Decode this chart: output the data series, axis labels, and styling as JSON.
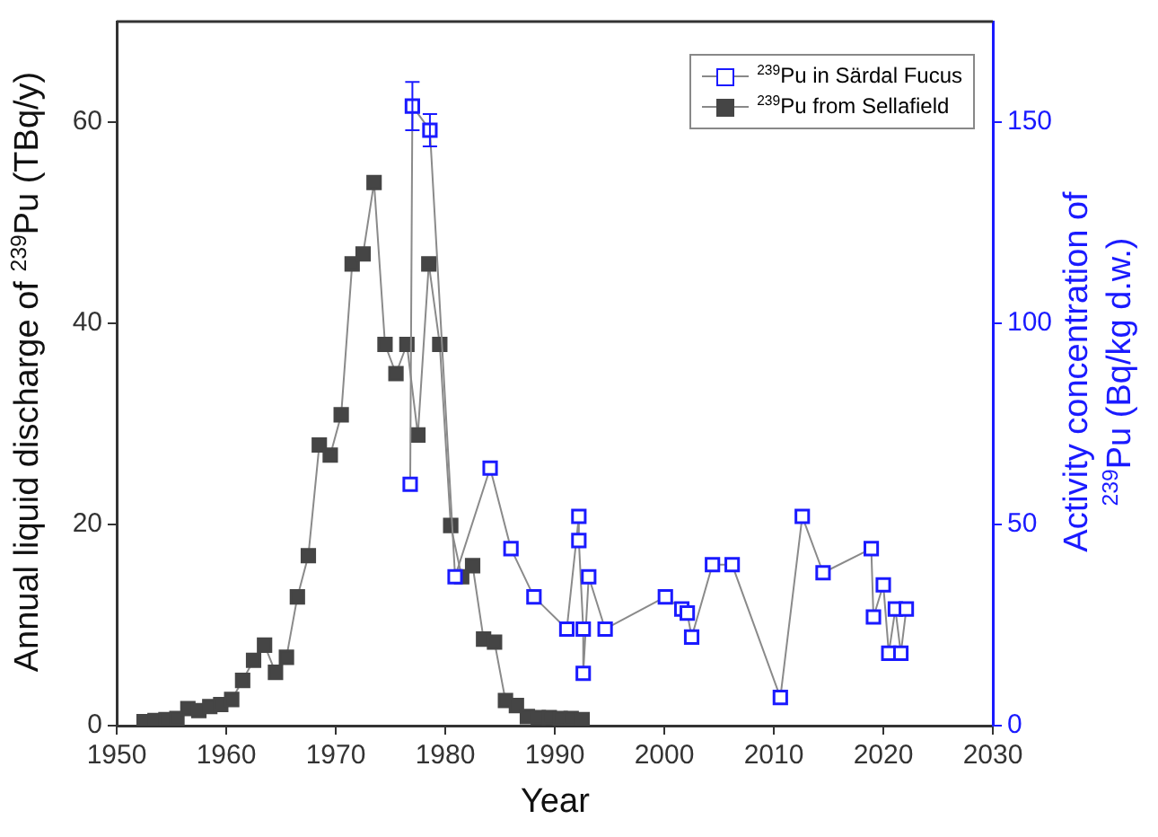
{
  "chart_data": {
    "type": "line",
    "xlabel": "Year",
    "ylabel": "Annual liquid discharge of $^{239}$Pu (TBq/y)",
    "y2label": "Activity concentration of $^{239}$Pu (Bq/kg d.w.)",
    "xlim": [
      1950,
      2030
    ],
    "xticks": [
      1950,
      1960,
      1970,
      1980,
      1990,
      2000,
      2010,
      2020,
      2030
    ],
    "ylim": [
      0,
      70
    ],
    "yticks": [
      0,
      20,
      40,
      60
    ],
    "y2lim": [
      0,
      175
    ],
    "y2ticks": [
      0,
      50,
      100,
      150
    ],
    "grid": false,
    "legend": "top right",
    "marker": "square",
    "line_style": "solid",
    "series": [
      {
        "name": "$^{239}$Pu in Särdal Fucus",
        "color": "#1a1aff",
        "axis": "y2",
        "x": [
          1976.8,
          1977.0,
          1978.6,
          1980.9,
          1984.1,
          1986.0,
          1988.1,
          1991.1,
          1992.2,
          1992.2,
          1992.6,
          1992.6,
          1993.1,
          1994.6,
          2000.1,
          2001.6,
          2002.1,
          2002.5,
          2004.4,
          2006.2,
          2010.6,
          2012.6,
          2014.5,
          2018.9,
          2019.1,
          2020.0,
          2020.5,
          2021.1,
          2021.6,
          2022.1
        ],
        "values": [
          60,
          154,
          148,
          37,
          64,
          44,
          32,
          24,
          52,
          46,
          24,
          13,
          37,
          24,
          32,
          29,
          28,
          22,
          40,
          40,
          7,
          52,
          38,
          44,
          27,
          35,
          18,
          29,
          18,
          29
        ],
        "errors": [
          null,
          6,
          4,
          null,
          null,
          null,
          null,
          null,
          null,
          null,
          null,
          null,
          null,
          null,
          null,
          null,
          null,
          null,
          null,
          null,
          null,
          null,
          null,
          null,
          null,
          null,
          null,
          null,
          null,
          null
        ]
      },
      {
        "name": "$^{239}$Pu from Sellafield",
        "color": "#454545",
        "axis": "y",
        "x": [
          1952.5,
          1953.5,
          1954.5,
          1955.5,
          1956.5,
          1957.5,
          1958.5,
          1959.5,
          1960.5,
          1961.5,
          1962.5,
          1963.5,
          1964.5,
          1965.5,
          1966.5,
          1967.5,
          1968.5,
          1969.5,
          1970.5,
          1971.5,
          1972.5,
          1973.5,
          1974.5,
          1975.5,
          1976.5,
          1977.5,
          1978.5,
          1979.5,
          1980.5,
          1981.5,
          1982.5,
          1983.5,
          1984.5,
          1985.5,
          1986.5,
          1987.5,
          1988.5,
          1989.5,
          1990.5,
          1991.5,
          1992.5
        ],
        "values": [
          0.4,
          0.5,
          0.6,
          0.7,
          1.7,
          1.5,
          1.9,
          2.1,
          2.6,
          4.5,
          6.5,
          8,
          5.3,
          6.8,
          12.8,
          16.9,
          27.9,
          26.9,
          30.9,
          45.9,
          46.9,
          54,
          37.9,
          35,
          37.9,
          28.9,
          45.9,
          37.9,
          19.9,
          14.8,
          15.9,
          8.6,
          8.3,
          2.5,
          2,
          0.9,
          0.8,
          0.8,
          0.7,
          0.7,
          0.6
        ]
      }
    ]
  }
}
